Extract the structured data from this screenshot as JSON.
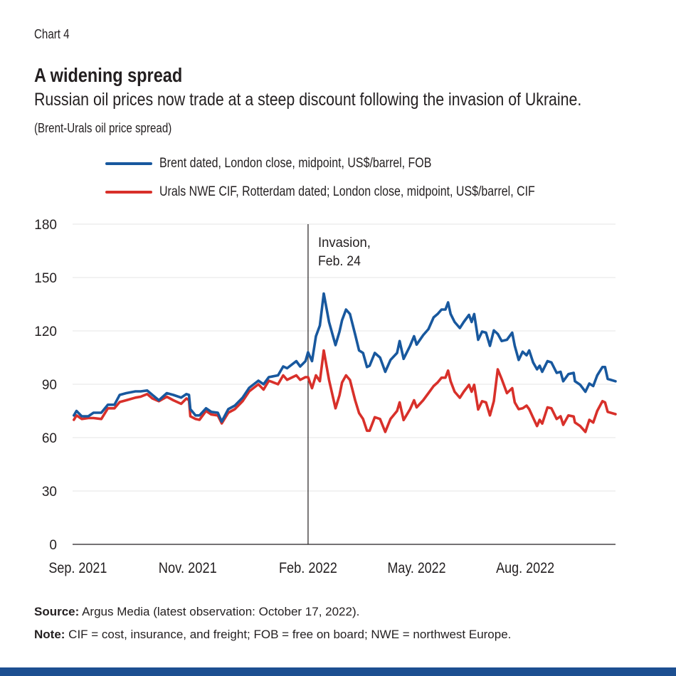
{
  "header": {
    "chart_label": "Chart 4",
    "title": "A widening spread",
    "subtitle": "Russian oil prices now trade at a steep discount following the invasion of Ukraine.",
    "unit_note": "(Brent-Urals oil price spread)"
  },
  "colors": {
    "brent": "#18589e",
    "urals": "#d8302a",
    "gridline": "#ebebeb",
    "bottom_bar": "#1d4f91"
  },
  "footer": {
    "source_label": "Source:",
    "source_text": " Argus Media (latest observation: October 17, 2022).",
    "note_label": "Note:",
    "note_text": " CIF = cost, insurance, and freight; FOB = free on board; NWE = northwest Europe."
  },
  "chart_data": {
    "type": "line",
    "title": "A widening spread",
    "subtitle": "Russian oil prices now trade at a steep discount following the invasion of Ukraine.",
    "xlabel": "",
    "ylabel": "",
    "xlim": [
      "2021-08-28",
      "2022-10-17"
    ],
    "ylim": [
      0,
      180
    ],
    "yticks": [
      0,
      30,
      60,
      90,
      120,
      150,
      180
    ],
    "xticks": [
      {
        "label": "Sep. 2021",
        "date": "2021-09-01"
      },
      {
        "label": "Nov. 2021",
        "date": "2021-11-24"
      },
      {
        "label": "Feb. 2022",
        "date": "2022-02-24"
      },
      {
        "label": "May. 2022",
        "date": "2022-05-18"
      },
      {
        "label": "Aug. 2022",
        "date": "2022-08-09"
      }
    ],
    "grid": true,
    "legend_position": "top",
    "annotation": {
      "date": "2022-02-24",
      "line1": "Invasion,",
      "line2": "Feb. 24"
    },
    "x": [
      "2021-08-29",
      "2021-08-31",
      "2021-09-04",
      "2021-09-09",
      "2021-09-13",
      "2021-09-19",
      "2021-09-24",
      "2021-09-29",
      "2021-10-03",
      "2021-10-08",
      "2021-10-15",
      "2021-10-19",
      "2021-10-24",
      "2021-10-28",
      "2021-11-02",
      "2021-11-08",
      "2021-11-13",
      "2021-11-19",
      "2021-11-23",
      "2021-11-25",
      "2021-11-26",
      "2021-11-30",
      "2021-12-03",
      "2021-12-08",
      "2021-12-12",
      "2021-12-17",
      "2021-12-20",
      "2021-12-25",
      "2021-12-30",
      "2022-01-05",
      "2022-01-10",
      "2022-01-17",
      "2022-01-21",
      "2022-01-25",
      "2022-02-01",
      "2022-02-05",
      "2022-02-08",
      "2022-02-15",
      "2022-02-18",
      "2022-02-22",
      "2022-02-24",
      "2022-02-27",
      "2022-03-02",
      "2022-03-05",
      "2022-03-08",
      "2022-03-12",
      "2022-03-17",
      "2022-03-20",
      "2022-03-22",
      "2022-03-25",
      "2022-03-28",
      "2022-04-01",
      "2022-04-04",
      "2022-04-07",
      "2022-04-10",
      "2022-04-12",
      "2022-04-16",
      "2022-04-20",
      "2022-04-24",
      "2022-04-28",
      "2022-05-03",
      "2022-05-05",
      "2022-05-08",
      "2022-05-13",
      "2022-05-16",
      "2022-05-18",
      "2022-05-23",
      "2022-05-27",
      "2022-05-31",
      "2022-06-03",
      "2022-06-06",
      "2022-06-09",
      "2022-06-11",
      "2022-06-13",
      "2022-06-16",
      "2022-06-20",
      "2022-06-23",
      "2022-06-27",
      "2022-06-29",
      "2022-07-01",
      "2022-07-04",
      "2022-07-07",
      "2022-07-10",
      "2022-07-13",
      "2022-07-16",
      "2022-07-19",
      "2022-07-22",
      "2022-07-26",
      "2022-07-30",
      "2022-08-01",
      "2022-08-04",
      "2022-08-07",
      "2022-08-10",
      "2022-08-12",
      "2022-08-15",
      "2022-08-18",
      "2022-08-20",
      "2022-08-22",
      "2022-08-26",
      "2022-08-29",
      "2022-09-02",
      "2022-09-05",
      "2022-09-07",
      "2022-09-11",
      "2022-09-15",
      "2022-09-16",
      "2022-09-20",
      "2022-09-24",
      "2022-09-27",
      "2022-09-30",
      "2022-10-03",
      "2022-10-07",
      "2022-10-09",
      "2022-10-11",
      "2022-10-17"
    ],
    "series": [
      {
        "name": "Brent dated, London close, midpoint, US$/barrel, FOB",
        "color": "#18589e",
        "values": [
          72.5,
          75,
          72,
          72,
          74,
          74,
          78.5,
          78.5,
          84,
          85,
          86,
          86,
          86.5,
          84,
          81,
          85,
          84,
          82.5,
          84.5,
          84,
          76,
          72.5,
          72.5,
          76.5,
          74.5,
          74,
          69,
          76,
          78,
          82.5,
          88,
          92,
          90,
          94,
          95,
          100,
          99,
          103,
          100,
          103,
          108,
          103,
          117,
          123,
          141,
          125,
          112,
          119.6,
          126,
          132,
          129.5,
          118,
          109,
          107.6,
          99.7,
          100.4,
          107.6,
          105,
          97,
          103.7,
          107.6,
          114.3,
          104.3,
          111.6,
          117,
          112.3,
          117.6,
          121,
          127.6,
          129.5,
          132,
          132,
          136,
          129.5,
          125,
          121.6,
          125,
          129,
          125,
          129.5,
          115,
          119.6,
          119,
          111.6,
          120.3,
          118.3,
          114.3,
          115,
          119,
          111.6,
          103.7,
          108.3,
          106.3,
          109,
          102.3,
          98.4,
          100.4,
          97,
          103,
          102.3,
          96.4,
          97,
          91.7,
          95.7,
          96.4,
          91.7,
          89.7,
          85.8,
          90.4,
          89,
          95,
          99.7,
          99.7,
          93,
          91.7
        ]
      },
      {
        "name": "Urals NWE CIF, Rotterdam dated; London close, midpoint, US$/barrel, CIF",
        "color": "#d8302a",
        "values": [
          70,
          72.5,
          70.5,
          71,
          71,
          70.5,
          76.5,
          76.5,
          80,
          81,
          82.5,
          83,
          84.5,
          82,
          80.5,
          83,
          81,
          79,
          82,
          81,
          72,
          70.5,
          70,
          75,
          73,
          72.5,
          68,
          74,
          76,
          80.5,
          86,
          90,
          87,
          92,
          90,
          95,
          92.5,
          95,
          92.5,
          94,
          94,
          87.8,
          95,
          91.7,
          109,
          92.4,
          76.5,
          83.8,
          91,
          95,
          92.4,
          81,
          73.8,
          70.5,
          63.9,
          63.9,
          71.5,
          70.5,
          63.2,
          70.5,
          75,
          79.8,
          69.9,
          76,
          81,
          77,
          81,
          85,
          89,
          91,
          93.7,
          93.7,
          97.7,
          91.7,
          85.8,
          82.4,
          85.8,
          89.7,
          85.8,
          89.7,
          75.8,
          80.5,
          79.8,
          72.5,
          80.5,
          98.4,
          93,
          85,
          87.8,
          79.8,
          76,
          76.5,
          78,
          76,
          71.2,
          66.5,
          70,
          67.9,
          77,
          76.5,
          70.5,
          72,
          67.2,
          72.5,
          71.9,
          68.5,
          66.5,
          63.2,
          70,
          68.5,
          75,
          80.5,
          79.8,
          74.5,
          73.2
        ]
      }
    ]
  }
}
